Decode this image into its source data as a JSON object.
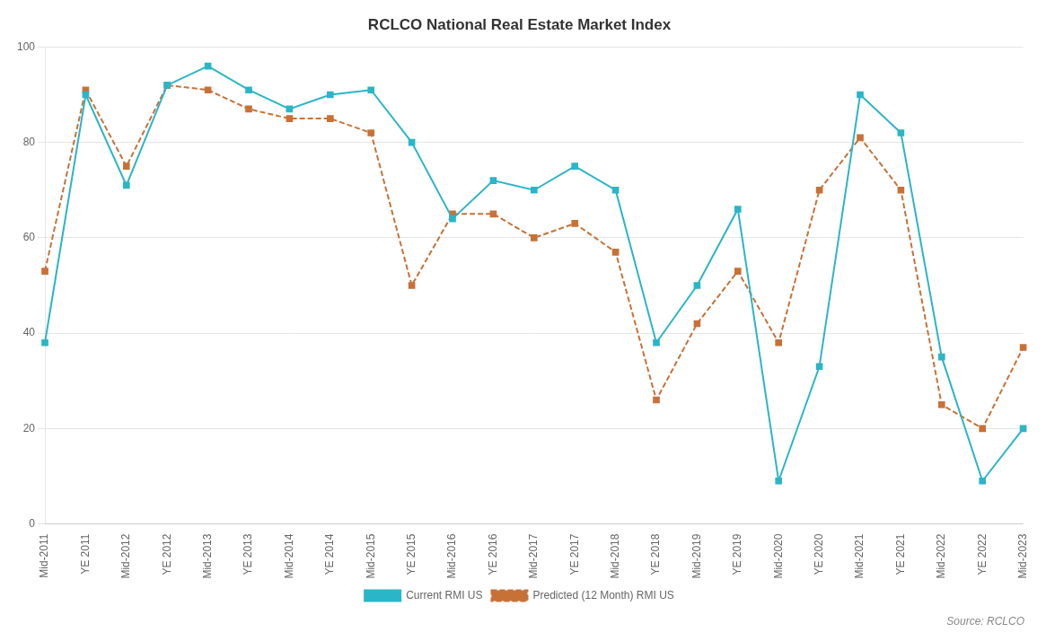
{
  "chart_data": {
    "type": "line",
    "title": "RCLCO National Real Estate Market Index",
    "categories": [
      "Mid-2011",
      "YE 2011",
      "Mid-2012",
      "YE 2012",
      "Mid-2013",
      "YE 2013",
      "Mid-2014",
      "YE 2014",
      "Mid-2015",
      "YE 2015",
      "Mid-2016",
      "YE 2016",
      "Mid-2017",
      "YE 2017",
      "Mid-2018",
      "YE 2018",
      "Mid-2019",
      "YE 2019",
      "Mid-2020",
      "YE 2020",
      "Mid-2021",
      "YE 2021",
      "Mid-2022",
      "YE 2022",
      "Mid-2023"
    ],
    "series": [
      {
        "name": "Current RMI US",
        "color": "#2BB5C8",
        "line_style": "solid",
        "marker": "square",
        "values": [
          38,
          90,
          71,
          92,
          96,
          91,
          87,
          90,
          91,
          80,
          64,
          72,
          70,
          75,
          70,
          38,
          50,
          66,
          9,
          33,
          90,
          82,
          35,
          9,
          20
        ]
      },
      {
        "name": "Predicted (12 Month) RMI US",
        "color": "#C87137",
        "line_style": "dashed",
        "marker": "square",
        "values": [
          53,
          91,
          75,
          92,
          91,
          87,
          85,
          85,
          82,
          50,
          65,
          65,
          60,
          63,
          57,
          26,
          42,
          53,
          38,
          70,
          81,
          70,
          25,
          20,
          37
        ]
      }
    ],
    "ylim": [
      0,
      100
    ],
    "yticks": [
      0,
      20,
      40,
      60,
      80,
      100
    ],
    "grid": "y",
    "legend": "bottom",
    "annotations": [
      "Source: RCLCO"
    ]
  }
}
